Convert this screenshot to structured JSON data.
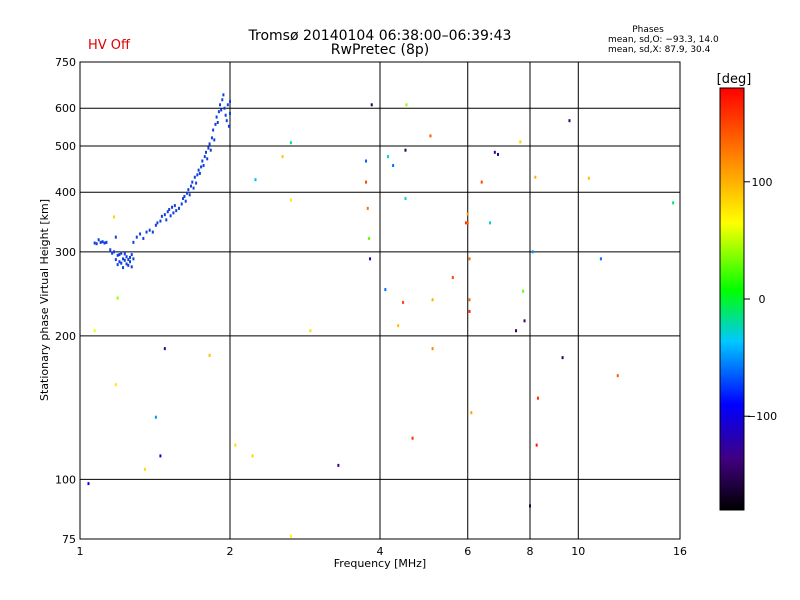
{
  "header": {
    "title": "Tromsø 20140104 06:38:00–06:39:43",
    "subtitle": "RwPretec (8p)",
    "status": "HV Off",
    "status_color": "#e00000",
    "phase_title": "Phases",
    "phase_o": "mean, sd,O: −93.3, 14.0",
    "phase_x": "mean, sd,X:  87.9, 30.4"
  },
  "colorbar": {
    "unit_label": "[deg]",
    "ticks": [
      "100",
      "0",
      "−100"
    ],
    "tick_values": [
      100,
      0,
      -100
    ],
    "range": [
      -180,
      180
    ]
  },
  "chart_data": {
    "type": "scatter",
    "xlabel": "Frequency [MHz]",
    "ylabel": "Stationary phase Virtual Height [km]",
    "x_scale": "log",
    "y_scale": "log",
    "xlim": [
      1,
      16
    ],
    "ylim": [
      75,
      750
    ],
    "x_ticks": [
      1,
      2,
      4,
      6,
      8,
      10,
      16
    ],
    "x_tick_labels": [
      "1",
      "2",
      "4",
      "6",
      "8",
      "10",
      "16"
    ],
    "y_ticks": [
      75,
      100,
      200,
      300,
      400,
      500,
      600,
      750
    ],
    "y_tick_labels": [
      "75",
      "100",
      "200",
      "300",
      "400",
      "500",
      "600",
      "750"
    ],
    "grid": true,
    "trace_color": "#1040e0",
    "trace_points": [
      [
        1.07,
        313
      ],
      [
        1.08,
        312
      ],
      [
        1.09,
        318
      ],
      [
        1.1,
        314
      ],
      [
        1.11,
        315
      ],
      [
        1.12,
        313
      ],
      [
        1.13,
        314
      ],
      [
        1.15,
        303
      ],
      [
        1.16,
        298
      ],
      [
        1.17,
        300
      ],
      [
        1.18,
        322
      ],
      [
        1.18,
        289
      ],
      [
        1.19,
        295
      ],
      [
        1.19,
        282
      ],
      [
        1.2,
        296
      ],
      [
        1.2,
        286
      ],
      [
        1.21,
        284
      ],
      [
        1.21,
        298
      ],
      [
        1.22,
        290
      ],
      [
        1.22,
        278
      ],
      [
        1.23,
        288
      ],
      [
        1.23,
        297
      ],
      [
        1.24,
        283
      ],
      [
        1.24,
        293
      ],
      [
        1.25,
        289
      ],
      [
        1.25,
        281
      ],
      [
        1.26,
        292
      ],
      [
        1.26,
        286
      ],
      [
        1.27,
        279
      ],
      [
        1.27,
        296
      ],
      [
        1.28,
        290
      ],
      [
        1.28,
        314
      ],
      [
        1.3,
        322
      ],
      [
        1.32,
        327
      ],
      [
        1.34,
        320
      ],
      [
        1.36,
        330
      ],
      [
        1.38,
        333
      ],
      [
        1.4,
        330
      ],
      [
        1.42,
        341
      ],
      [
        1.43,
        345
      ],
      [
        1.45,
        348
      ],
      [
        1.46,
        356
      ],
      [
        1.48,
        359
      ],
      [
        1.49,
        350
      ],
      [
        1.5,
        364
      ],
      [
        1.51,
        368
      ],
      [
        1.52,
        357
      ],
      [
        1.53,
        372
      ],
      [
        1.54,
        362
      ],
      [
        1.55,
        375
      ],
      [
        1.56,
        366
      ],
      [
        1.58,
        370
      ],
      [
        1.6,
        378
      ],
      [
        1.61,
        388
      ],
      [
        1.62,
        392
      ],
      [
        1.63,
        383
      ],
      [
        1.64,
        398
      ],
      [
        1.65,
        405
      ],
      [
        1.66,
        395
      ],
      [
        1.67,
        412
      ],
      [
        1.68,
        420
      ],
      [
        1.69,
        408
      ],
      [
        1.7,
        430
      ],
      [
        1.71,
        418
      ],
      [
        1.72,
        435
      ],
      [
        1.73,
        445
      ],
      [
        1.74,
        438
      ],
      [
        1.75,
        452
      ],
      [
        1.76,
        465
      ],
      [
        1.77,
        455
      ],
      [
        1.78,
        475
      ],
      [
        1.79,
        485
      ],
      [
        1.8,
        470
      ],
      [
        1.81,
        495
      ],
      [
        1.82,
        505
      ],
      [
        1.83,
        490
      ],
      [
        1.84,
        520
      ],
      [
        1.85,
        540
      ],
      [
        1.86,
        515
      ],
      [
        1.87,
        555
      ],
      [
        1.88,
        575
      ],
      [
        1.89,
        560
      ],
      [
        1.9,
        590
      ],
      [
        1.91,
        610
      ],
      [
        1.92,
        595
      ],
      [
        1.93,
        625
      ],
      [
        1.94,
        640
      ],
      [
        1.95,
        600
      ],
      [
        1.96,
        580
      ],
      [
        1.97,
        565
      ],
      [
        1.98,
        610
      ],
      [
        1.99,
        550
      ],
      [
        2.0,
        585
      ],
      [
        2.0,
        620
      ]
    ],
    "scatter_points": [
      [
        1.04,
        98,
        -95
      ],
      [
        1.07,
        205,
        60
      ],
      [
        1.17,
        355,
        85
      ],
      [
        1.19,
        240,
        40
      ],
      [
        1.18,
        158,
        75
      ],
      [
        1.35,
        105,
        80
      ],
      [
        1.42,
        135,
        -50
      ],
      [
        1.45,
        112,
        -110
      ],
      [
        1.48,
        188,
        -130
      ],
      [
        1.82,
        182,
        95
      ],
      [
        2.05,
        118,
        80
      ],
      [
        2.22,
        112,
        85
      ],
      [
        2.25,
        425,
        -40
      ],
      [
        2.55,
        475,
        90
      ],
      [
        2.65,
        385,
        75
      ],
      [
        2.65,
        508,
        -20
      ],
      [
        2.65,
        76,
        70
      ],
      [
        2.9,
        205,
        80
      ],
      [
        3.3,
        107,
        -130
      ],
      [
        3.75,
        465,
        -65
      ],
      [
        3.75,
        420,
        150
      ],
      [
        3.78,
        370,
        130
      ],
      [
        3.8,
        320,
        30
      ],
      [
        3.82,
        290,
        -120
      ],
      [
        3.85,
        610,
        -150
      ],
      [
        4.1,
        250,
        -60
      ],
      [
        4.15,
        475,
        -30
      ],
      [
        4.25,
        455,
        -60
      ],
      [
        4.35,
        210,
        95
      ],
      [
        4.45,
        235,
        150
      ],
      [
        4.5,
        388,
        -30
      ],
      [
        4.5,
        490,
        -150
      ],
      [
        4.52,
        610,
        40
      ],
      [
        4.65,
        122,
        160
      ],
      [
        5.05,
        525,
        140
      ],
      [
        5.1,
        238,
        100
      ],
      [
        5.1,
        188,
        120
      ],
      [
        5.6,
        265,
        150
      ],
      [
        5.95,
        345,
        155
      ],
      [
        6.0,
        360,
        110
      ],
      [
        6.0,
        345,
        140
      ],
      [
        6.05,
        290,
        130
      ],
      [
        6.05,
        238,
        130
      ],
      [
        6.05,
        225,
        160
      ],
      [
        6.1,
        138,
        105
      ],
      [
        6.4,
        420,
        150
      ],
      [
        6.65,
        345,
        -30
      ],
      [
        6.8,
        485,
        -130
      ],
      [
        6.9,
        480,
        -120
      ],
      [
        7.5,
        205,
        -150
      ],
      [
        7.65,
        510,
        85
      ],
      [
        7.75,
        248,
        30
      ],
      [
        7.8,
        215,
        -140
      ],
      [
        8.1,
        300,
        -50
      ],
      [
        8.2,
        430,
        100
      ],
      [
        8.25,
        118,
        170
      ],
      [
        8.3,
        148,
        160
      ],
      [
        9.3,
        180,
        -150
      ],
      [
        9.6,
        565,
        -140
      ],
      [
        10.5,
        428,
        95
      ],
      [
        11.1,
        290,
        -60
      ],
      [
        12.0,
        165,
        140
      ],
      [
        15.5,
        380,
        -10
      ],
      [
        8.0,
        88,
        -160
      ]
    ]
  }
}
